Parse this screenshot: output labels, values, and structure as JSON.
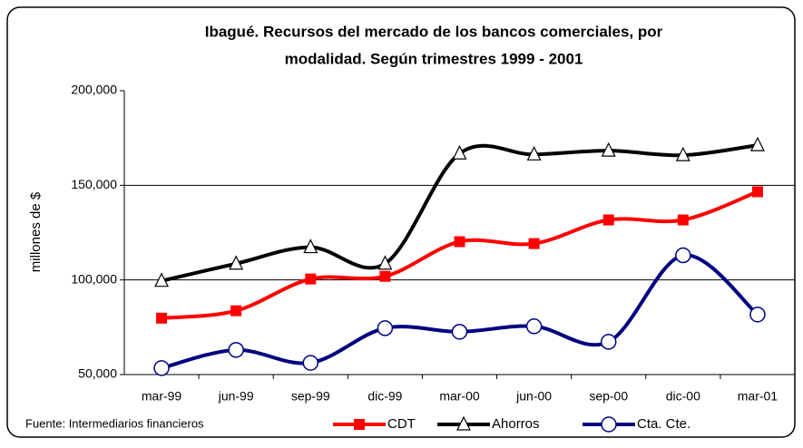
{
  "chart_data": {
    "type": "line",
    "title": "Ibagué.  Recursos del mercado de los bancos comerciales, por",
    "subtitle": "modalidad. Según trimestres 1999 - 2001",
    "y_label": "millones de $",
    "source": "Fuente: Intermediarios financieros",
    "categories": [
      "mar-99",
      "jun-99",
      "sep-99",
      "dic-99",
      "mar-00",
      "jun-00",
      "sep-00",
      "dic-00",
      "mar-01"
    ],
    "series": [
      {
        "name": "CDT",
        "color": "#ff0000",
        "marker": "square",
        "values": [
          79800,
          83700,
          100500,
          101900,
          120200,
          119200,
          131700,
          131700,
          146600
        ]
      },
      {
        "name": "Ahorros",
        "color": "#000000",
        "marker": "triangle",
        "values": [
          99500,
          108600,
          117300,
          108600,
          166800,
          166300,
          168300,
          165900,
          171200
        ]
      },
      {
        "name": "Cta. Cte.",
        "color": "#000080",
        "marker": "circle",
        "values": [
          53400,
          63000,
          56200,
          74500,
          72600,
          75500,
          67300,
          113000,
          81700
        ]
      }
    ],
    "ylim": [
      50000,
      200000
    ],
    "yticks": [
      {
        "value": 50000,
        "label": "50,000"
      },
      {
        "value": 100000,
        "label": "100,000"
      },
      {
        "value": 150000,
        "label": "150,000"
      },
      {
        "value": 200000,
        "label": "200,000"
      }
    ],
    "grid": true,
    "legend": "bottom"
  }
}
